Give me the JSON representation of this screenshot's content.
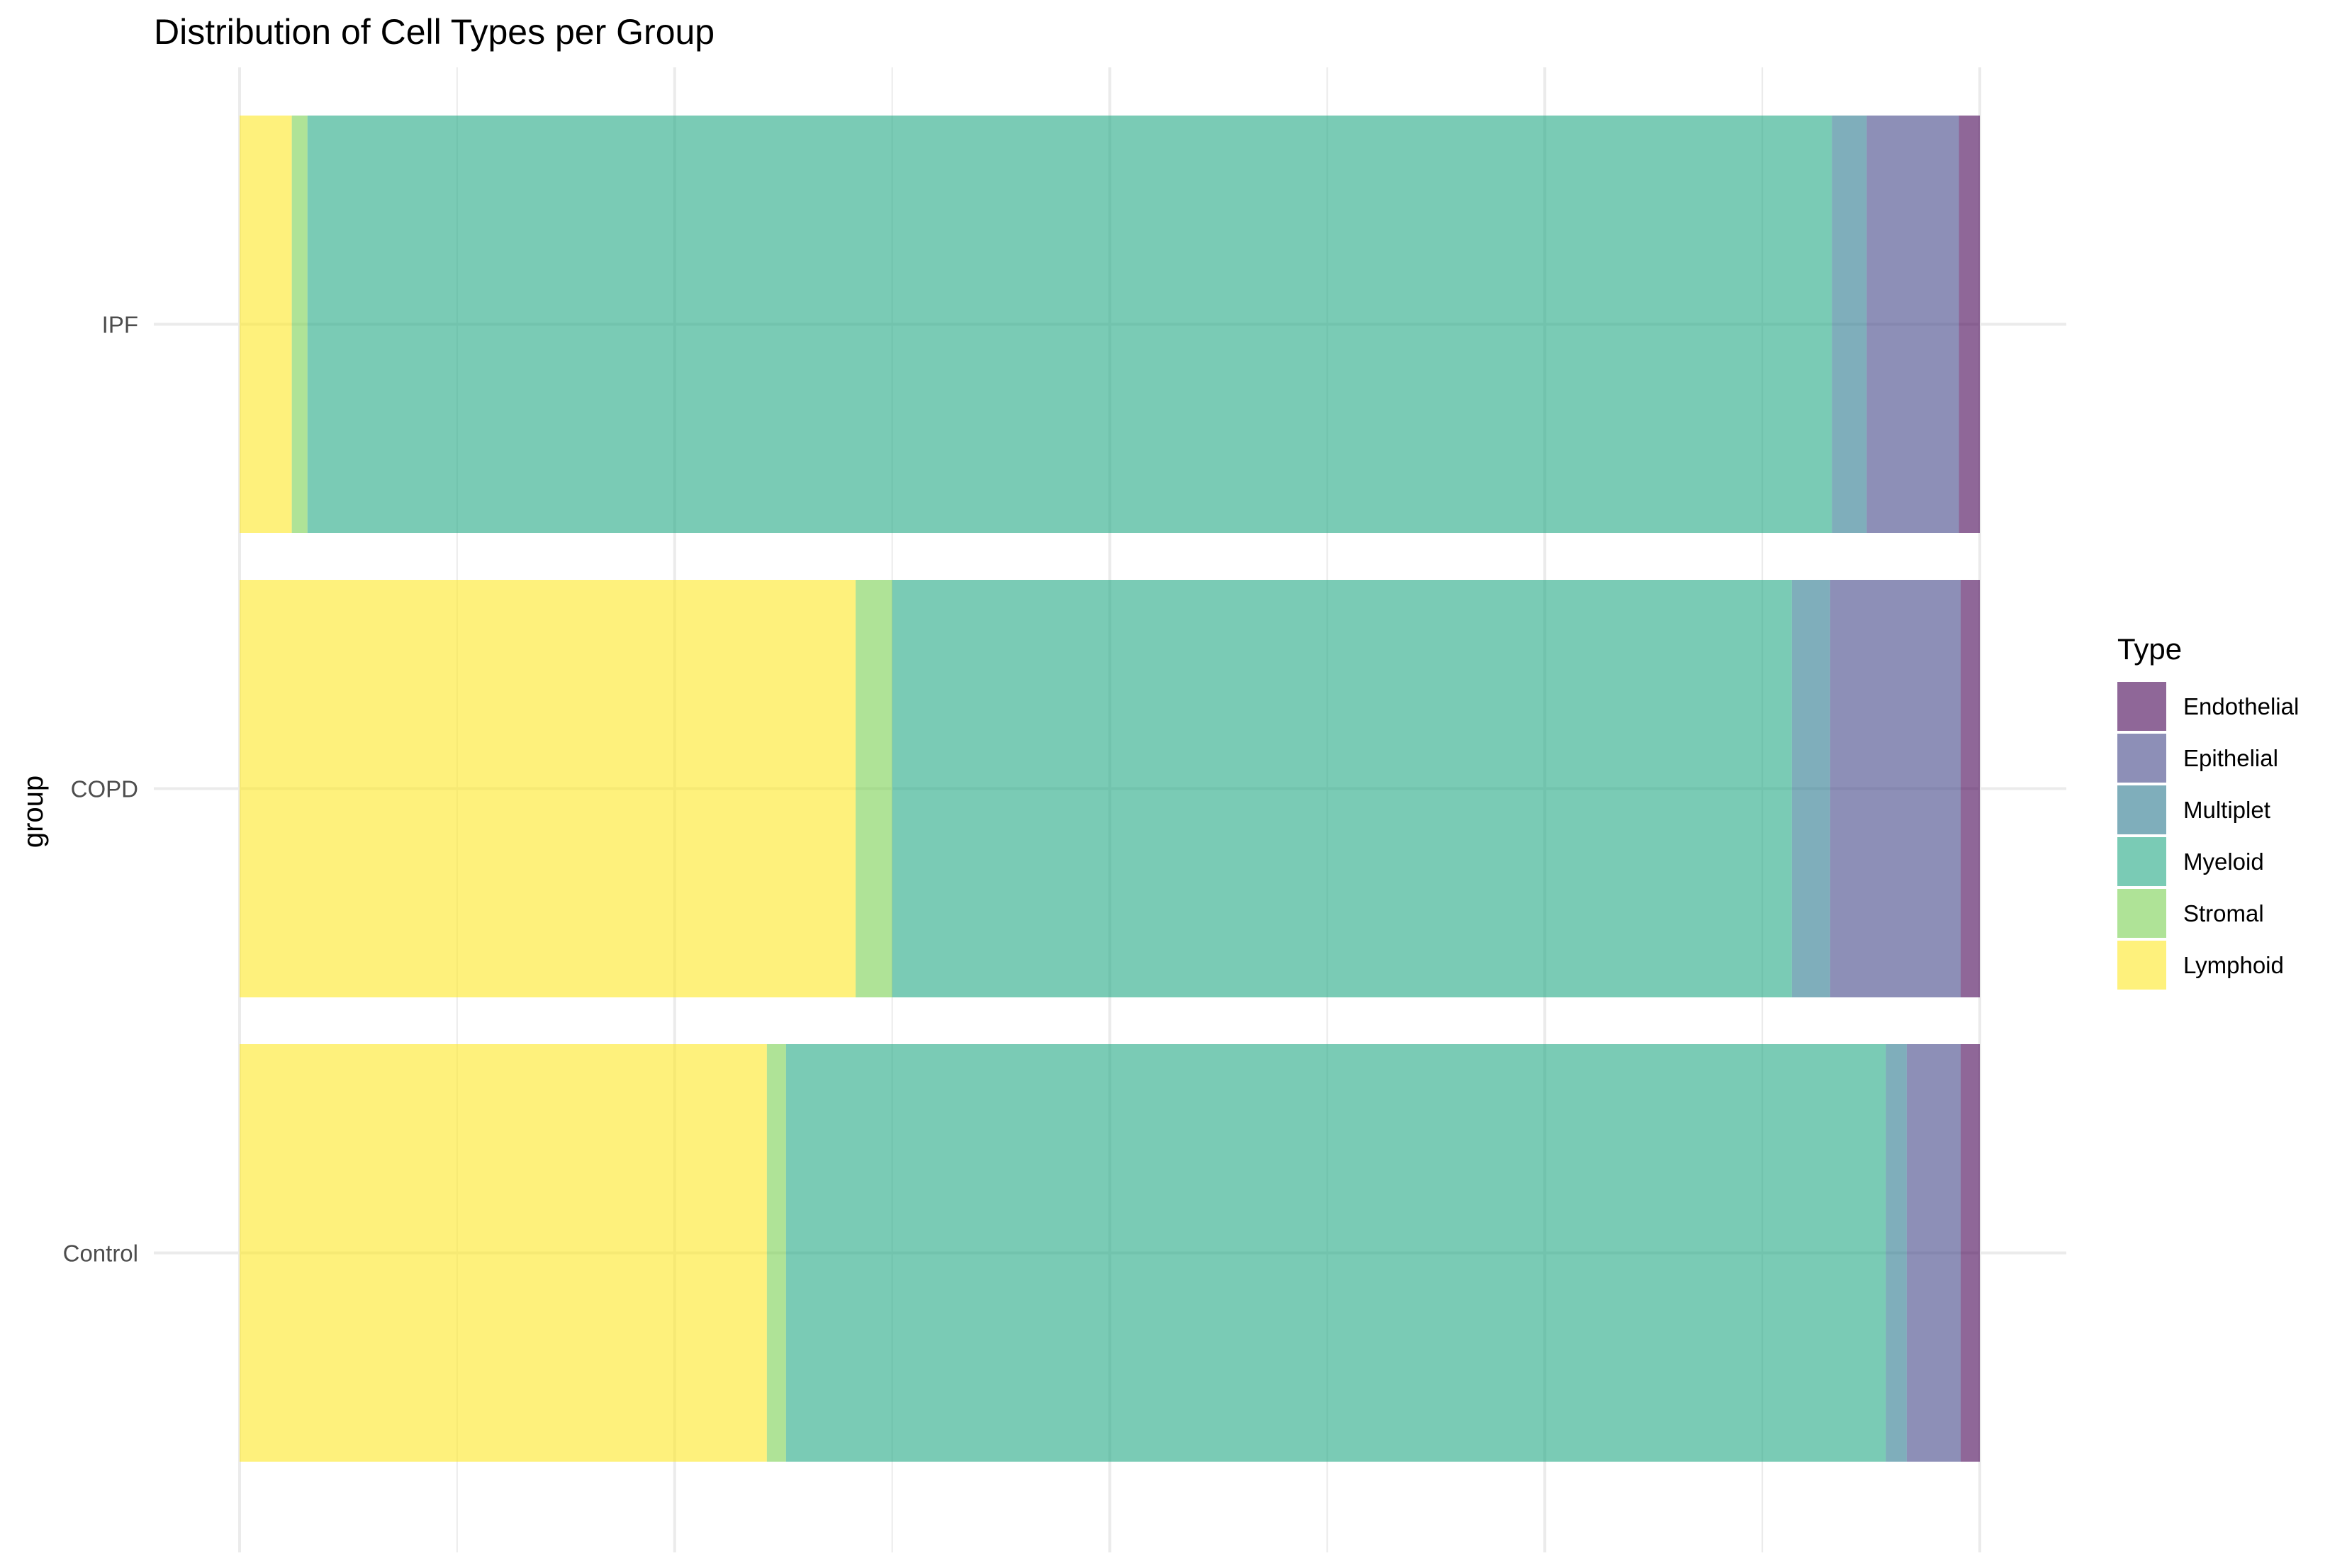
{
  "chart_data": {
    "type": "bar",
    "orientation": "horizontal",
    "stacked": true,
    "title": "Distribution of Cell Types per Group",
    "xlabel": "",
    "ylabel": "group",
    "xlim": [
      0,
      1
    ],
    "x_ticks_labeled": false,
    "grid": true,
    "legend_title": "Type",
    "legend_position": "right",
    "categories": [
      "IPF",
      "COPD",
      "Control"
    ],
    "series": [
      {
        "name": "Lymphoid",
        "color": "#FDE725",
        "values": [
          0.03,
          0.354,
          0.303
        ]
      },
      {
        "name": "Stromal",
        "color": "#7AD151",
        "values": [
          0.009,
          0.021,
          0.011
        ]
      },
      {
        "name": "Myeloid",
        "color": "#22A884",
        "values": [
          0.876,
          0.517,
          0.632
        ]
      },
      {
        "name": "Multiplet",
        "color": "#2A788E",
        "values": [
          0.02,
          0.022,
          0.012
        ]
      },
      {
        "name": "Epithelial",
        "color": "#414487",
        "values": [
          0.053,
          0.075,
          0.031
        ]
      },
      {
        "name": "Endothelial",
        "color": "#440154",
        "values": [
          0.012,
          0.011,
          0.011
        ]
      }
    ],
    "legend_order": [
      "Endothelial",
      "Epithelial",
      "Multiplet",
      "Myeloid",
      "Stromal",
      "Lymphoid"
    ],
    "bar_opacity": 0.6
  }
}
